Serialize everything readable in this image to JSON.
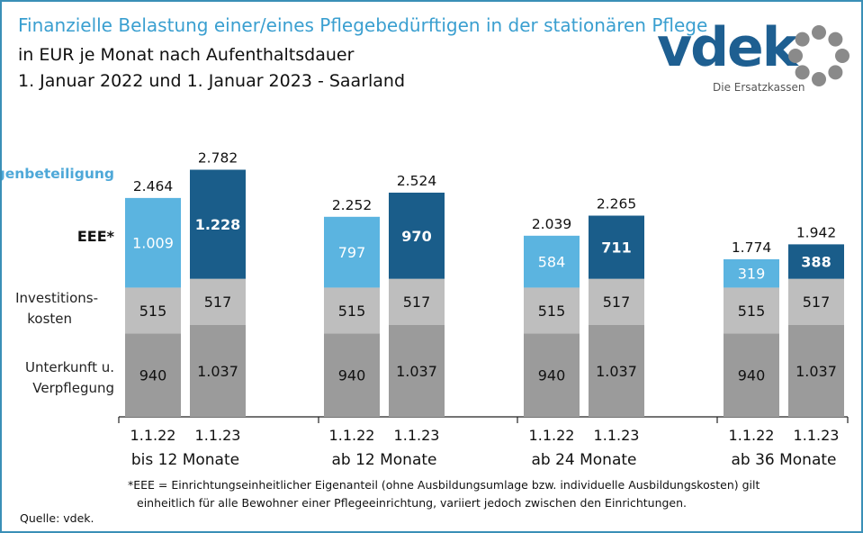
{
  "header": {
    "title": "Finanzielle Belastung einer/eines Pflegebedürftigen in der stationären Pflege",
    "subtitle1": "in EUR je Monat nach Aufenthaltsdauer",
    "subtitle2": "1. Januar 2022 und 1. Januar 2023 - Saarland"
  },
  "logo": {
    "word": "vdek",
    "tagline": "Die Ersatzkassen",
    "brand_color": "#1e5f91",
    "ring_color": "#8a8a8a"
  },
  "footnote": {
    "line1": "*EEE = Einrichtungseinheitlicher  Eigenanteil (ohne Ausbildungsumlage  bzw. individuelle Ausbildungskosten)  gilt",
    "line2": "einheitlich  für alle Bewohner einer Pflegeeinrichtung,  variiert jedoch zwischen den Einrichtungen."
  },
  "source": "Quelle: vdek.",
  "colors": {
    "unterkunft": "#9b9b9b",
    "invest": "#bebebe",
    "eee_2022": "#5bb4e0",
    "eee_2023": "#1a5d8a",
    "eigenbeteiligung_label": "#4ea8d8"
  },
  "chart_data": {
    "type": "bar",
    "stacked": true,
    "ylim": [
      0,
      3000
    ],
    "groups": [
      {
        "label": "bis 12 Monate",
        "bars": [
          {
            "date": "1.1.22",
            "unterkunft": 940,
            "invest": 515,
            "eee": 1009,
            "total": 2464,
            "unterkunft_label": "940",
            "invest_label": "515",
            "eee_label": "1.009",
            "total_label": "2.464"
          },
          {
            "date": "1.1.23",
            "unterkunft": 1037,
            "invest": 517,
            "eee": 1228,
            "total": 2782,
            "unterkunft_label": "1.037",
            "invest_label": "517",
            "eee_label": "1.228",
            "total_label": "2.782"
          }
        ]
      },
      {
        "label": "ab 12 Monate",
        "bars": [
          {
            "date": "1.1.22",
            "unterkunft": 940,
            "invest": 515,
            "eee": 797,
            "total": 2252,
            "unterkunft_label": "940",
            "invest_label": "515",
            "eee_label": "797",
            "total_label": "2.252"
          },
          {
            "date": "1.1.23",
            "unterkunft": 1037,
            "invest": 517,
            "eee": 970,
            "total": 2524,
            "unterkunft_label": "1.037",
            "invest_label": "517",
            "eee_label": "970",
            "total_label": "2.524"
          }
        ]
      },
      {
        "label": "ab 24 Monate",
        "bars": [
          {
            "date": "1.1.22",
            "unterkunft": 940,
            "invest": 515,
            "eee": 584,
            "total": 2039,
            "unterkunft_label": "940",
            "invest_label": "515",
            "eee_label": "584",
            "total_label": "2.039"
          },
          {
            "date": "1.1.23",
            "unterkunft": 1037,
            "invest": 517,
            "eee": 711,
            "total": 2265,
            "unterkunft_label": "1.037",
            "invest_label": "517",
            "eee_label": "711",
            "total_label": "2.265"
          }
        ]
      },
      {
        "label": "ab 36 Monate",
        "bars": [
          {
            "date": "1.1.22",
            "unterkunft": 940,
            "invest": 515,
            "eee": 319,
            "total": 1774,
            "unterkunft_label": "940",
            "invest_label": "515",
            "eee_label": "319",
            "total_label": "1.774"
          },
          {
            "date": "1.1.23",
            "unterkunft": 1037,
            "invest": 517,
            "eee": 388,
            "total": 1942,
            "unterkunft_label": "1.037",
            "invest_label": "517",
            "eee_label": "388",
            "total_label": "1.942"
          }
        ]
      }
    ],
    "legend": {
      "eigenbeteiligung": "Eigenbeteiligung",
      "eee": "EEE*",
      "invest": [
        "Investitions-",
        "kosten"
      ],
      "unterkunft": [
        "Unterkunft u.",
        "Verpflegung"
      ]
    }
  }
}
